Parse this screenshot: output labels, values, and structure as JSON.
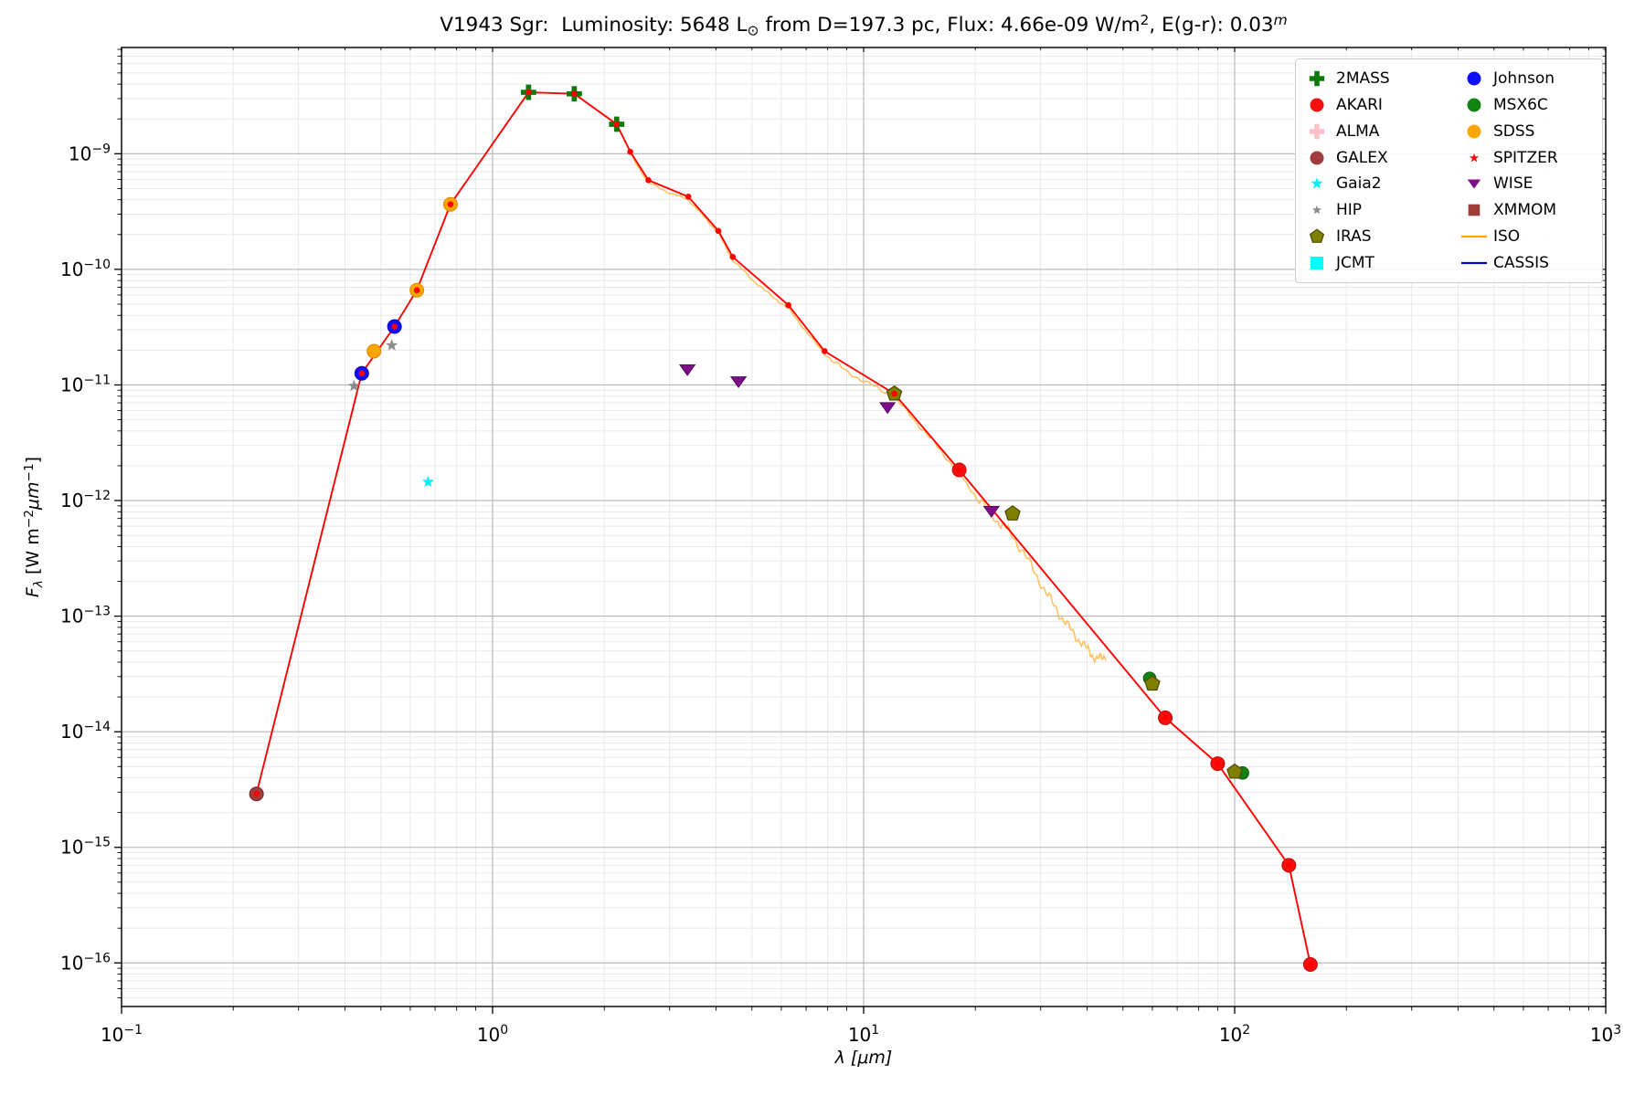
{
  "title_parts": {
    "p1": "V1943 Sgr:  Luminosity: 5648 L",
    "sun": "⊙",
    "p2": " from D=197.3 pc, Flux: 4.66e-09 W/m",
    "e1": "2",
    "p3": ", E(g-r): 0.03",
    "e2": "m"
  },
  "axes": {
    "xlabel": "λ [μm]",
    "ylabel_parts": {
      "f": "F",
      "fsub": "λ",
      "u1": " [W m",
      "e1": "−2",
      "u2": "μm",
      "e2": "−1",
      "u3": "]"
    },
    "x_tick_exponents": [
      -1,
      0,
      1,
      2,
      3
    ],
    "y_tick_exponents": [
      -9,
      -10,
      -11,
      -12,
      -13,
      -14,
      -15,
      -16
    ],
    "xlim": [
      0.1,
      1000
    ],
    "ylim": [
      4.2e-17,
      8.3e-09
    ]
  },
  "chart_data": {
    "type": "scatter",
    "title": "V1943 Sgr:  Luminosity: 5648 L⊙ from D=197.3 pc, Flux: 4.66e-09 W/m², E(g-r): 0.03ᵐ",
    "xlabel": "λ [μm]",
    "ylabel": "Fλ [W m⁻²μm⁻¹]",
    "xlim": [
      0.1,
      1000
    ],
    "ylim": [
      4.2e-17,
      8.3e-09
    ],
    "x_scale": "log",
    "y_scale": "log",
    "grid": true,
    "legend_position": "upper right",
    "series": [
      {
        "name": "2MASS",
        "marker": "plus",
        "color": "#0b7a0b",
        "edge": "none",
        "size": 8.4,
        "points": [
          [
            1.25,
            3.4e-09
          ],
          [
            1.66,
            3.3e-09
          ],
          [
            2.16,
            1.8e-09
          ]
        ]
      },
      {
        "name": "AKARI",
        "marker": "circle",
        "color": "#f50f0f",
        "edge": "#c40808",
        "size": 7.5,
        "points": [
          [
            18.1,
            1.84e-12
          ],
          [
            65,
            1.32e-14
          ],
          [
            90,
            5.3e-15
          ],
          [
            140,
            7e-16
          ],
          [
            160,
            9.7e-17
          ]
        ]
      },
      {
        "name": "ALMA",
        "marker": "plus",
        "color": "#ffc0cb",
        "edge": "none",
        "size": 8.0,
        "points": []
      },
      {
        "name": "GALEX",
        "marker": "circle",
        "color": "#a03c3c",
        "edge": "#6f2424",
        "size": 7.5,
        "points": [
          [
            0.231,
            2.9e-15
          ]
        ]
      },
      {
        "name": "Gaia2",
        "marker": "star",
        "color": "#00f2ff",
        "edge": "none",
        "size": 6.8,
        "points": [
          [
            0.67,
            1.45e-12
          ]
        ]
      },
      {
        "name": "HIP",
        "marker": "star",
        "color": "#8c8c8c",
        "edge": "none",
        "size": 7.0,
        "points": [
          [
            0.423,
            9.8e-12
          ],
          [
            0.535,
            2.2e-11
          ]
        ]
      },
      {
        "name": "IRAS",
        "marker": "pentagon",
        "color": "#7f7f00",
        "edge": "#4a4a00",
        "size": 8.5,
        "points": [
          [
            12.1,
            8.4e-12
          ],
          [
            25.2,
            7.7e-13
          ],
          [
            60,
            2.6e-14
          ],
          [
            100,
            4.5e-15
          ]
        ]
      },
      {
        "name": "JCMT",
        "marker": "square",
        "color": "#00ffff",
        "edge": "none",
        "size": 7.0,
        "points": []
      },
      {
        "name": "Johnson",
        "marker": "circle",
        "color": "#0d0dff",
        "edge": "#0707b8",
        "size": 7.5,
        "points": [
          [
            0.444,
            1.26e-11
          ],
          [
            0.544,
            3.2e-11
          ]
        ]
      },
      {
        "name": "MSX6C",
        "marker": "circle",
        "color": "#128312",
        "edge": "#0a5c0a",
        "size": 6.8,
        "points": [
          [
            59,
            2.9e-14
          ],
          [
            105,
            4.4e-15
          ]
        ]
      },
      {
        "name": "SDSS",
        "marker": "circle",
        "color": "#ffa502",
        "edge": "#d88700",
        "size": 7.5,
        "points": [
          [
            0.479,
            1.96e-11
          ],
          [
            0.625,
            6.6e-11
          ],
          [
            0.77,
            3.65e-10
          ]
        ]
      },
      {
        "name": "SPITZER",
        "marker": "star",
        "color": "#ee1111",
        "edge": "none",
        "size": 5.2,
        "points": []
      },
      {
        "name": "WISE",
        "marker": "triangle-down",
        "color": "#7d0e87",
        "edge": "#530a5c",
        "size": 8.2,
        "points": [
          [
            3.35,
            1.36e-11
          ],
          [
            4.6,
            1.07e-11
          ],
          [
            11.6,
            6.4e-12
          ],
          [
            22.1,
            8.1e-13
          ]
        ]
      },
      {
        "name": "XMMOM",
        "marker": "square",
        "color": "#a03c3c",
        "edge": "none",
        "size": 6.5,
        "points": []
      }
    ],
    "model_line": {
      "name": "photometry-model-line",
      "color": "#ff0000",
      "vertex_dot_radius": 3.3,
      "points": [
        [
          0.231,
          2.9e-15
        ],
        [
          0.444,
          1.26e-11
        ],
        [
          0.544,
          3.2e-11
        ],
        [
          0.625,
          6.6e-11
        ],
        [
          0.77,
          3.65e-10
        ],
        [
          1.25,
          3.4e-09
        ],
        [
          1.66,
          3.3e-09
        ],
        [
          2.16,
          1.8e-09
        ],
        [
          2.35,
          1.04e-09
        ],
        [
          2.63,
          5.9e-10
        ],
        [
          3.37,
          4.25e-10
        ],
        [
          4.06,
          2.15e-10
        ],
        [
          4.44,
          1.28e-10
        ],
        [
          6.27,
          4.9e-11
        ],
        [
          7.85,
          1.96e-11
        ],
        [
          12.1,
          8.4e-12
        ],
        [
          18.1,
          1.84e-12
        ],
        [
          65,
          1.32e-14
        ],
        [
          90,
          5.3e-15
        ],
        [
          140,
          7e-16
        ],
        [
          160,
          9.7e-17
        ]
      ]
    },
    "iso_spectrum": {
      "name": "ISO",
      "color": "#ffbb55",
      "points": [
        [
          2.35,
          1e-09
        ],
        [
          2.63,
          5.6e-10
        ],
        [
          3.0,
          4.6e-10
        ],
        [
          3.37,
          4e-10
        ],
        [
          3.7,
          2.9e-10
        ],
        [
          4.06,
          2.05e-10
        ],
        [
          4.44,
          1.2e-10
        ],
        [
          5.0,
          8.2e-11
        ],
        [
          5.6,
          6e-11
        ],
        [
          6.27,
          4.6e-11
        ],
        [
          7.0,
          2.9e-11
        ],
        [
          7.85,
          1.85e-11
        ],
        [
          9.0,
          1.3e-11
        ],
        [
          10.5,
          1e-11
        ],
        [
          12.1,
          7.8e-12
        ],
        [
          14,
          4.6e-12
        ],
        [
          16,
          2.8e-12
        ],
        [
          18.1,
          1.7e-12
        ],
        [
          20.5,
          1e-12
        ],
        [
          23,
          6.6e-13
        ],
        [
          25,
          5.2e-13
        ],
        [
          28,
          2.9e-13
        ],
        [
          31,
          1.6e-13
        ],
        [
          34,
          1e-13
        ],
        [
          37,
          6.9e-14
        ],
        [
          40,
          5.2e-14
        ],
        [
          42.5,
          4.2e-14
        ],
        [
          45,
          4.6e-14
        ]
      ]
    }
  },
  "legend": {
    "columns": [
      [
        {
          "label": "2MASS",
          "marker": "plus",
          "color": "#0b7a0b",
          "edge": "none"
        },
        {
          "label": "AKARI",
          "marker": "circle",
          "color": "#f50f0f",
          "edge": "none"
        },
        {
          "label": "ALMA",
          "marker": "plus",
          "color": "#ffc0cb",
          "edge": "none"
        },
        {
          "label": "GALEX",
          "marker": "circle",
          "color": "#a03c3c",
          "edge": "none"
        },
        {
          "label": "Gaia2",
          "marker": "star",
          "color": "#00f2ff",
          "edge": "none"
        },
        {
          "label": "HIP",
          "marker": "star-small",
          "color": "#8c8c8c",
          "edge": "none"
        },
        {
          "label": "IRAS",
          "marker": "pentagon",
          "color": "#7f7f00",
          "edge": "#4a4a00"
        },
        {
          "label": "JCMT",
          "marker": "square",
          "color": "#00ffff",
          "edge": "none"
        }
      ],
      [
        {
          "label": "Johnson",
          "marker": "circle",
          "color": "#0d0dff",
          "edge": "none"
        },
        {
          "label": "MSX6C",
          "marker": "circle",
          "color": "#128312",
          "edge": "none"
        },
        {
          "label": "SDSS",
          "marker": "circle",
          "color": "#ffa502",
          "edge": "none"
        },
        {
          "label": "SPITZER",
          "marker": "star-small",
          "color": "#ee1111",
          "edge": "none"
        },
        {
          "label": "WISE",
          "marker": "triangle-down",
          "color": "#7d0e87",
          "edge": "none"
        },
        {
          "label": "XMMOM",
          "marker": "square-small",
          "color": "#a03c3c",
          "edge": "none"
        },
        {
          "label": "ISO",
          "marker": "hline",
          "color": "#ffa500",
          "edge": "none"
        },
        {
          "label": "CASSIS",
          "marker": "hline",
          "color": "#0000cd",
          "edge": "none"
        }
      ]
    ]
  }
}
